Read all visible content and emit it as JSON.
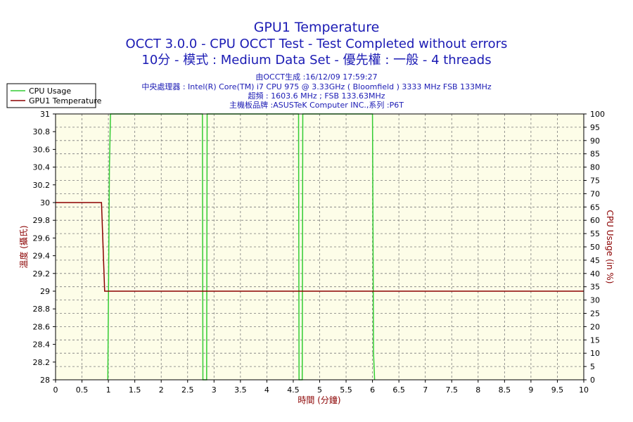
{
  "chart_data": {
    "type": "line",
    "title": "GPU1 Temperature",
    "subtitle_lines": [
      "OCCT 3.0.0 - CPU OCCT Test - Test Completed without errors",
      "10分 - 模式 : Medium Data Set - 優先權 : 一般 - 4 threads"
    ],
    "info_lines": [
      "由OCCT生成 :16/12/09 17:59:27",
      "中央處理器 : Intel(R) Core(TM) i7 CPU 975 @ 3.33GHz ( Bloomfield ) 3333 MHz FSB 133MHz",
      "超頻 : 1603.6 MHz ; FSB 133.63MHz",
      "主機板品牌 :ASUSTeK Computer INC.,系列 :P6T"
    ],
    "xlabel": "時間 (分鐘)",
    "ylabel": "溫度 (攝氏)",
    "ylabel_right": "CPU Usage (in %)",
    "xlim": [
      0,
      10
    ],
    "ylim": [
      28,
      31
    ],
    "ylim_right": [
      0,
      100
    ],
    "x_ticks": [
      "0",
      "0.5",
      "1",
      "1.5",
      "2",
      "2.5",
      "3",
      "3.5",
      "4",
      "4.5",
      "5",
      "5.5",
      "6",
      "6.5",
      "7",
      "7.5",
      "8",
      "8.5",
      "9",
      "9.5",
      "10"
    ],
    "y_ticks": [
      "28",
      "28.2",
      "28.4",
      "28.6",
      "28.8",
      "29",
      "29.2",
      "29.4",
      "29.6",
      "29.8",
      "30",
      "30.2",
      "30.4",
      "30.6",
      "30.8",
      "31"
    ],
    "y_ticks_right": [
      "0",
      "5",
      "10",
      "15",
      "20",
      "25",
      "30",
      "35",
      "40",
      "45",
      "50",
      "55",
      "60",
      "65",
      "70",
      "75",
      "80",
      "85",
      "90",
      "95",
      "100"
    ],
    "grid": true,
    "legend_position": "top-left outside",
    "colors": {
      "cpu_usage": "#33cc33",
      "gpu_temp": "#8b0000",
      "plot_bg": "#fdfde8",
      "title": "#1b1bb4",
      "grid": "#7a7a7a"
    },
    "series": [
      {
        "name": "CPU Usage",
        "axis": "right",
        "x": [
          0.99,
          1.02,
          1.04,
          2.78,
          2.79,
          2.86,
          2.87,
          4.6,
          4.61,
          4.67,
          4.68,
          6.0,
          6.02,
          6.04
        ],
        "y": [
          0,
          80,
          100,
          100,
          0,
          0,
          100,
          100,
          0,
          0,
          100,
          100,
          10,
          0
        ]
      },
      {
        "name": "GPU1 Temperature",
        "axis": "left",
        "x": [
          0,
          0.87,
          0.93,
          10
        ],
        "y": [
          30,
          30,
          29,
          29
        ]
      }
    ]
  }
}
